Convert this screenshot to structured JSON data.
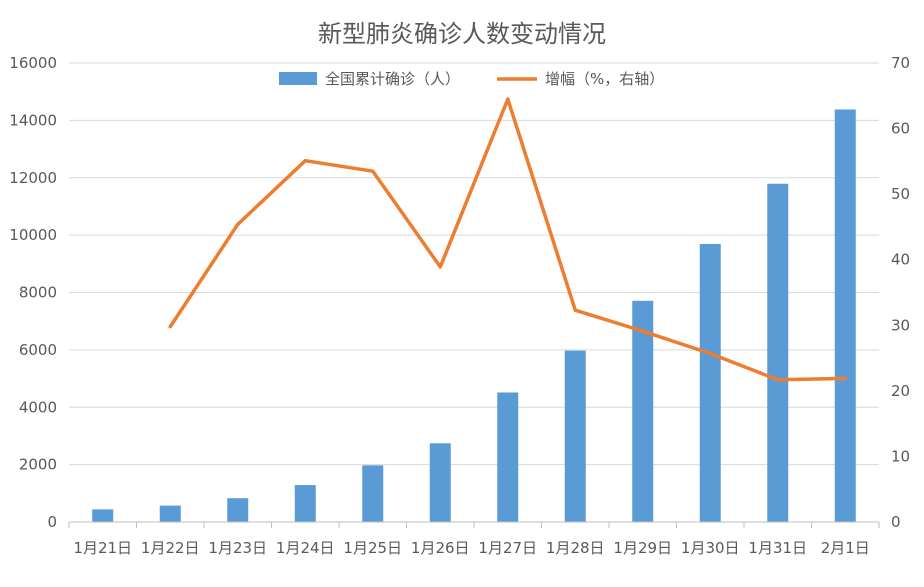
{
  "chart_data": {
    "type": "bar+line",
    "title": "新型肺炎确诊人数变动情况",
    "categories": [
      "1月21日",
      "1月22日",
      "1月23日",
      "1月24日",
      "1月25日",
      "1月26日",
      "1月27日",
      "1月28日",
      "1月29日",
      "1月30日",
      "1月31日",
      "2月1日"
    ],
    "series": [
      {
        "name": "全国累计确诊（人）",
        "type": "bar",
        "axis": "left",
        "color": "#5B9BD5",
        "values": [
          440,
          571,
          830,
          1287,
          1975,
          2744,
          4515,
          5974,
          7711,
          9692,
          11791,
          14380
        ]
      },
      {
        "name": "增幅（%，右轴）",
        "type": "line",
        "axis": "right",
        "color": "#ED7D31",
        "values": [
          null,
          29.8,
          45.4,
          55.1,
          53.5,
          38.9,
          64.5,
          32.3,
          29.1,
          25.7,
          21.7,
          21.9
        ]
      }
    ],
    "y_left": {
      "min": 0,
      "max": 16000,
      "ticks": [
        0,
        2000,
        4000,
        6000,
        8000,
        10000,
        12000,
        14000,
        16000
      ]
    },
    "y_right": {
      "min": 0,
      "max": 70,
      "ticks": [
        0,
        10,
        20,
        30,
        40,
        50,
        60,
        70
      ]
    },
    "grid": true,
    "legend_position": "top-center"
  }
}
